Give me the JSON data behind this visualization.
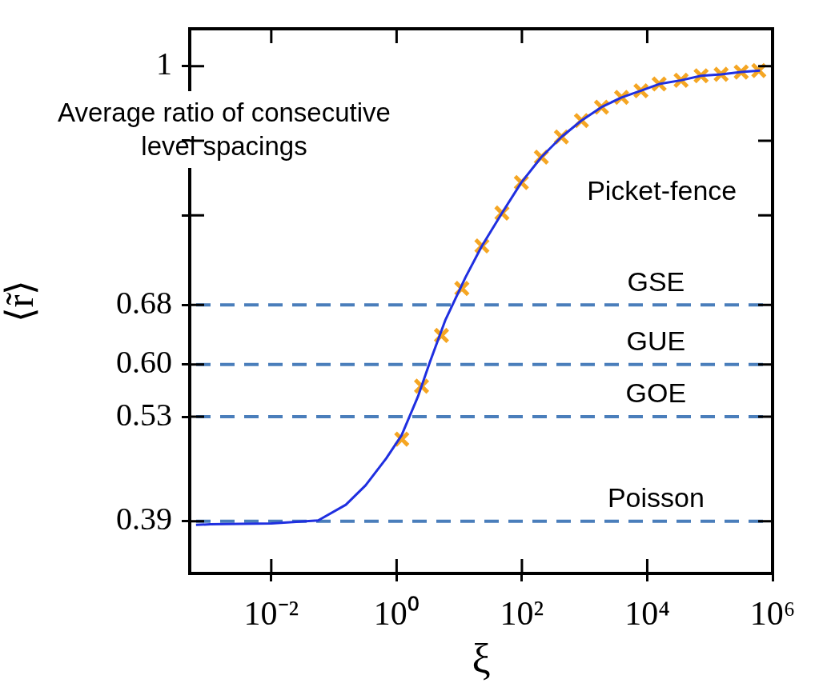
{
  "chart_data": {
    "type": "line",
    "title": "Average ratio of consecutive level spacings",
    "xlabel": "ξ",
    "ylabel": "⟨r̃⟩",
    "log": "x",
    "grid": false,
    "legend": false,
    "xlim": [
      0.0005,
      1000000
    ],
    "xticks": [
      {
        "value": 0.01,
        "label": "10⁻²"
      },
      {
        "value": 1,
        "label": "10⁰"
      },
      {
        "value": 100,
        "label": "10²"
      },
      {
        "value": 10000,
        "label": "10⁴"
      },
      {
        "value": 1000000,
        "label": "10⁶"
      }
    ],
    "ylim": [
      0.32,
      1.05
    ],
    "yticks": [
      0.39,
      0.53,
      {
        "value": 0.6,
        "label": "0.60"
      },
      0.68,
      {
        "value": 0.8,
        "label": null
      },
      {
        "value": 0.9,
        "label": null
      },
      1
    ],
    "series": [
      {
        "type": "line",
        "color": "#1f2fe0",
        "marker": "none",
        "line_style": "solid",
        "x": [
          0.00063,
          0.00107,
          0.01,
          0.056,
          0.155,
          0.32,
          0.68,
          1.2,
          2.19,
          3.39,
          6.03,
          12.6,
          23,
          48,
          98,
          204,
          427,
          891,
          1862,
          3890,
          7943,
          15500,
          34700,
          72400,
          151000,
          316000,
          631000
        ],
        "values": [
          0.385,
          0.386,
          0.387,
          0.391,
          0.412,
          0.438,
          0.474,
          0.505,
          0.557,
          0.603,
          0.66,
          0.717,
          0.759,
          0.803,
          0.844,
          0.878,
          0.905,
          0.927,
          0.945,
          0.958,
          0.967,
          0.976,
          0.981,
          0.987,
          0.989,
          0.992,
          0.994
        ]
      },
      {
        "type": "scatter",
        "color": "#f5a623",
        "marker": "cross",
        "x": [
          1.21,
          2.5,
          5.2,
          11,
          23,
          48,
          98,
          204,
          427,
          891,
          1862,
          3890,
          7943,
          15500,
          34700,
          72400,
          151000,
          316000,
          603000
        ],
        "values": [
          0.5,
          0.571,
          0.639,
          0.702,
          0.759,
          0.803,
          0.844,
          0.878,
          0.905,
          0.927,
          0.945,
          0.958,
          0.967,
          0.976,
          0.981,
          0.987,
          0.989,
          0.992,
          0.994
        ]
      }
    ],
    "ref_lines": [
      {
        "axis": "y",
        "value": 0.68,
        "label": "GSE",
        "color": "#4a7ebb",
        "line_style": "dashed"
      },
      {
        "axis": "y",
        "value": 0.6,
        "label": "GUE",
        "color": "#4a7ebb",
        "line_style": "dashed"
      },
      {
        "axis": "y",
        "value": 0.53,
        "label": "GOE",
        "color": "#4a7ebb",
        "line_style": "dashed"
      },
      {
        "axis": "y",
        "value": 0.39,
        "label": "Poisson",
        "color": "#4a7ebb",
        "line_style": "dashed"
      }
    ],
    "annotations": [
      "Picket-fence"
    ]
  }
}
